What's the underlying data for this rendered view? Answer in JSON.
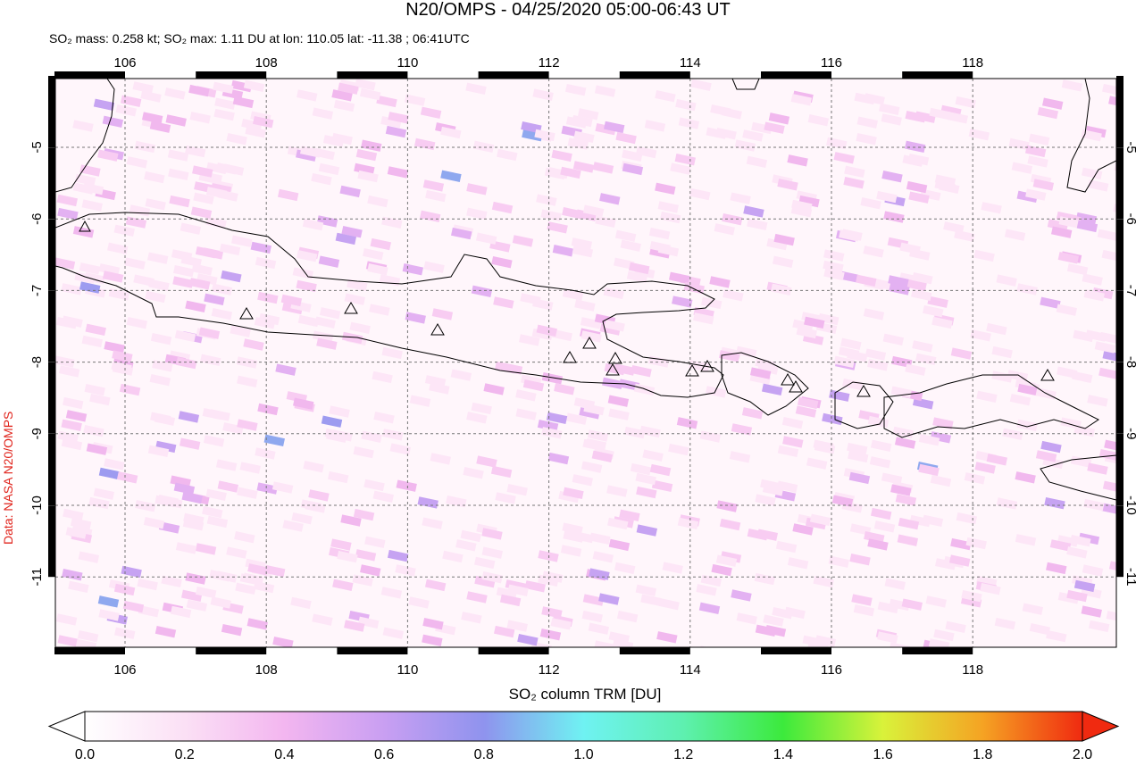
{
  "header": {
    "title": "N20/OMPS - 04/25/2020 05:00-06:43 UT",
    "subtitle": "SO₂ mass: 0.258 kt; SO₂ max: 1.11 DU at lon: 110.05 lat: -11.38 ; 06:41UTC"
  },
  "map": {
    "lon_ticks": [
      "106",
      "108",
      "110",
      "112",
      "114",
      "116",
      "118"
    ],
    "lat_ticks": [
      "-5",
      "-6",
      "-7",
      "-8",
      "-9",
      "-10",
      "-11"
    ],
    "credit": "Data: NASA N20/OMPS"
  },
  "colorbar": {
    "label": "SO₂ column TRM [DU]",
    "ticks": [
      "0.0",
      "0.2",
      "0.4",
      "0.6",
      "0.8",
      "1.0",
      "1.2",
      "1.4",
      "1.6",
      "1.8",
      "2.0"
    ]
  }
}
